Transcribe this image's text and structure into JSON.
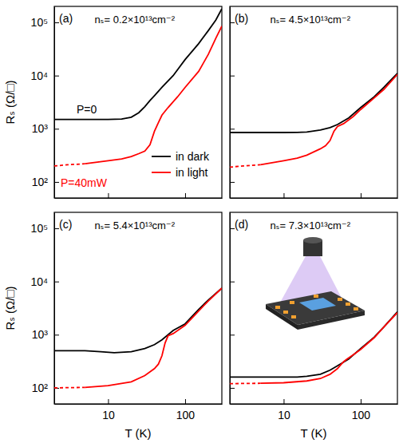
{
  "chart_data": [
    {
      "type": "line",
      "title": "(a)",
      "subtitle": "nₛ= 0.2×10¹³cm⁻²",
      "ylabel": "Rₛ (Ω/□)",
      "log": true,
      "xlim": [
        2,
        300
      ],
      "ylim": [
        50,
        200000
      ],
      "xticks": [
        10,
        100
      ],
      "yticks": [
        {
          "value": 100,
          "label": "10²"
        },
        {
          "value": 1000,
          "label": "10³"
        },
        {
          "value": 10000,
          "label": "10⁴"
        },
        {
          "value": 100000,
          "label": "10⁵"
        }
      ],
      "tick_labels": "y",
      "legend": "lower right",
      "annotations": [
        {
          "text": "P=0",
          "color": "#000000"
        },
        {
          "text": "P=40mW",
          "color": "#ff0000"
        }
      ],
      "series": [
        {
          "name": "in dark",
          "color": "#000000",
          "line_style": "solid",
          "x": [
            2,
            5,
            10,
            15,
            20,
            25,
            30,
            35,
            40,
            50,
            70,
            100,
            150,
            200,
            250,
            300
          ],
          "values": [
            1500,
            1500,
            1500,
            1520,
            1650,
            2000,
            2600,
            3400,
            4200,
            6000,
            10000,
            20000,
            40000,
            70000,
            110000,
            180000
          ]
        },
        {
          "name": "in light",
          "color": "#ff0000",
          "line_style": "solid",
          "x": [
            5,
            10,
            15,
            20,
            25,
            30,
            35,
            40,
            45,
            50,
            60,
            80,
            100,
            150,
            200,
            250,
            300
          ],
          "values": [
            220,
            250,
            270,
            300,
            340,
            380,
            500,
            900,
            1300,
            1800,
            2500,
            4000,
            6000,
            12000,
            25000,
            50000,
            85000
          ]
        },
        {
          "color": "#ff0000",
          "line_style": "dashed",
          "x": [
            2,
            3,
            5
          ],
          "values": [
            200,
            210,
            220
          ]
        }
      ]
    },
    {
      "type": "line",
      "subtitle": "nₛ= 4.5×10¹³cm⁻²",
      "log": true,
      "xlim": [
        2,
        300
      ],
      "ylim": [
        50,
        200000
      ],
      "xticks": [
        10,
        100
      ],
      "yticks": [
        100,
        1000,
        10000,
        100000
      ],
      "tick_labels": false,
      "title": "(b)",
      "series": [
        {
          "color": "#000000",
          "line_style": "solid",
          "x": [
            2,
            5,
            10,
            15,
            20,
            30,
            40,
            50,
            70,
            100,
            150,
            200,
            300
          ],
          "values": [
            850,
            850,
            850,
            855,
            870,
            950,
            1050,
            1200,
            1600,
            2500,
            4000,
            6000,
            11000
          ]
        },
        {
          "color": "#ff0000",
          "line_style": "solid",
          "x": [
            5,
            10,
            15,
            20,
            30,
            35,
            40,
            45,
            50,
            60,
            80,
            100,
            150,
            200,
            300
          ],
          "values": [
            210,
            250,
            280,
            320,
            420,
            480,
            600,
            900,
            1100,
            1250,
            1700,
            2300,
            3800,
            5500,
            10500
          ]
        },
        {
          "color": "#ff0000",
          "line_style": "dashed",
          "x": [
            2,
            3,
            5
          ],
          "values": [
            190,
            200,
            210
          ]
        }
      ]
    },
    {
      "type": "line",
      "title": "(c)",
      "subtitle": "nₛ= 5.4×10¹³cm⁻²",
      "xlabel": "T (K)",
      "ylabel": "Rₛ (Ω/□)",
      "log": true,
      "xlim": [
        2,
        300
      ],
      "ylim": [
        50,
        200000
      ],
      "xticks": [
        10,
        100
      ],
      "yticks": [
        {
          "value": 100,
          "label": "10²"
        },
        {
          "value": 1000,
          "label": "10³"
        },
        {
          "value": 10000,
          "label": "10⁴"
        },
        {
          "value": 100000,
          "label": "10⁵"
        }
      ],
      "tick_labels": true,
      "series": [
        {
          "color": "#000000",
          "line_style": "solid",
          "x": [
            2,
            5,
            8,
            12,
            20,
            30,
            40,
            50,
            70,
            100,
            150,
            200,
            300
          ],
          "values": [
            500,
            500,
            480,
            460,
            480,
            550,
            650,
            800,
            1200,
            1600,
            3000,
            4500,
            7500
          ]
        },
        {
          "color": "#ff0000",
          "line_style": "solid",
          "x": [
            5,
            10,
            20,
            30,
            40,
            45,
            50,
            55,
            60,
            70,
            100,
            150,
            200,
            300
          ],
          "values": [
            102,
            110,
            130,
            170,
            230,
            280,
            400,
            700,
            950,
            1050,
            1500,
            2800,
            4300,
            7500
          ]
        },
        {
          "color": "#ff0000",
          "line_style": "dashed",
          "x": [
            2,
            3,
            5
          ],
          "values": [
            100,
            101,
            102
          ]
        }
      ]
    },
    {
      "type": "line",
      "title": "(d)",
      "subtitle": "nₛ= 7.3×10¹³cm⁻²",
      "xlabel": "T (K)",
      "log": true,
      "xlim": [
        2,
        300
      ],
      "ylim": [
        50,
        200000
      ],
      "xticks": [
        10,
        100
      ],
      "yticks": [
        100,
        1000,
        10000,
        100000
      ],
      "tick_labels": "x",
      "series": [
        {
          "color": "#000000",
          "line_style": "solid",
          "x": [
            2,
            5,
            10,
            15,
            20,
            30,
            40,
            50,
            70,
            100,
            150,
            200,
            300
          ],
          "values": [
            160,
            160,
            160,
            160,
            165,
            180,
            215,
            260,
            350,
            550,
            900,
            1400,
            2700
          ]
        },
        {
          "color": "#ff0000",
          "line_style": "solid",
          "x": [
            5,
            10,
            20,
            30,
            40,
            50,
            55,
            60,
            65,
            80,
            100,
            150,
            200,
            300
          ],
          "values": [
            122,
            125,
            135,
            150,
            180,
            230,
            270,
            310,
            340,
            420,
            530,
            880,
            1400,
            2600
          ]
        },
        {
          "color": "#ff0000",
          "line_style": "dashed",
          "x": [
            2,
            3,
            5
          ],
          "values": [
            120,
            121,
            122
          ]
        }
      ]
    }
  ]
}
